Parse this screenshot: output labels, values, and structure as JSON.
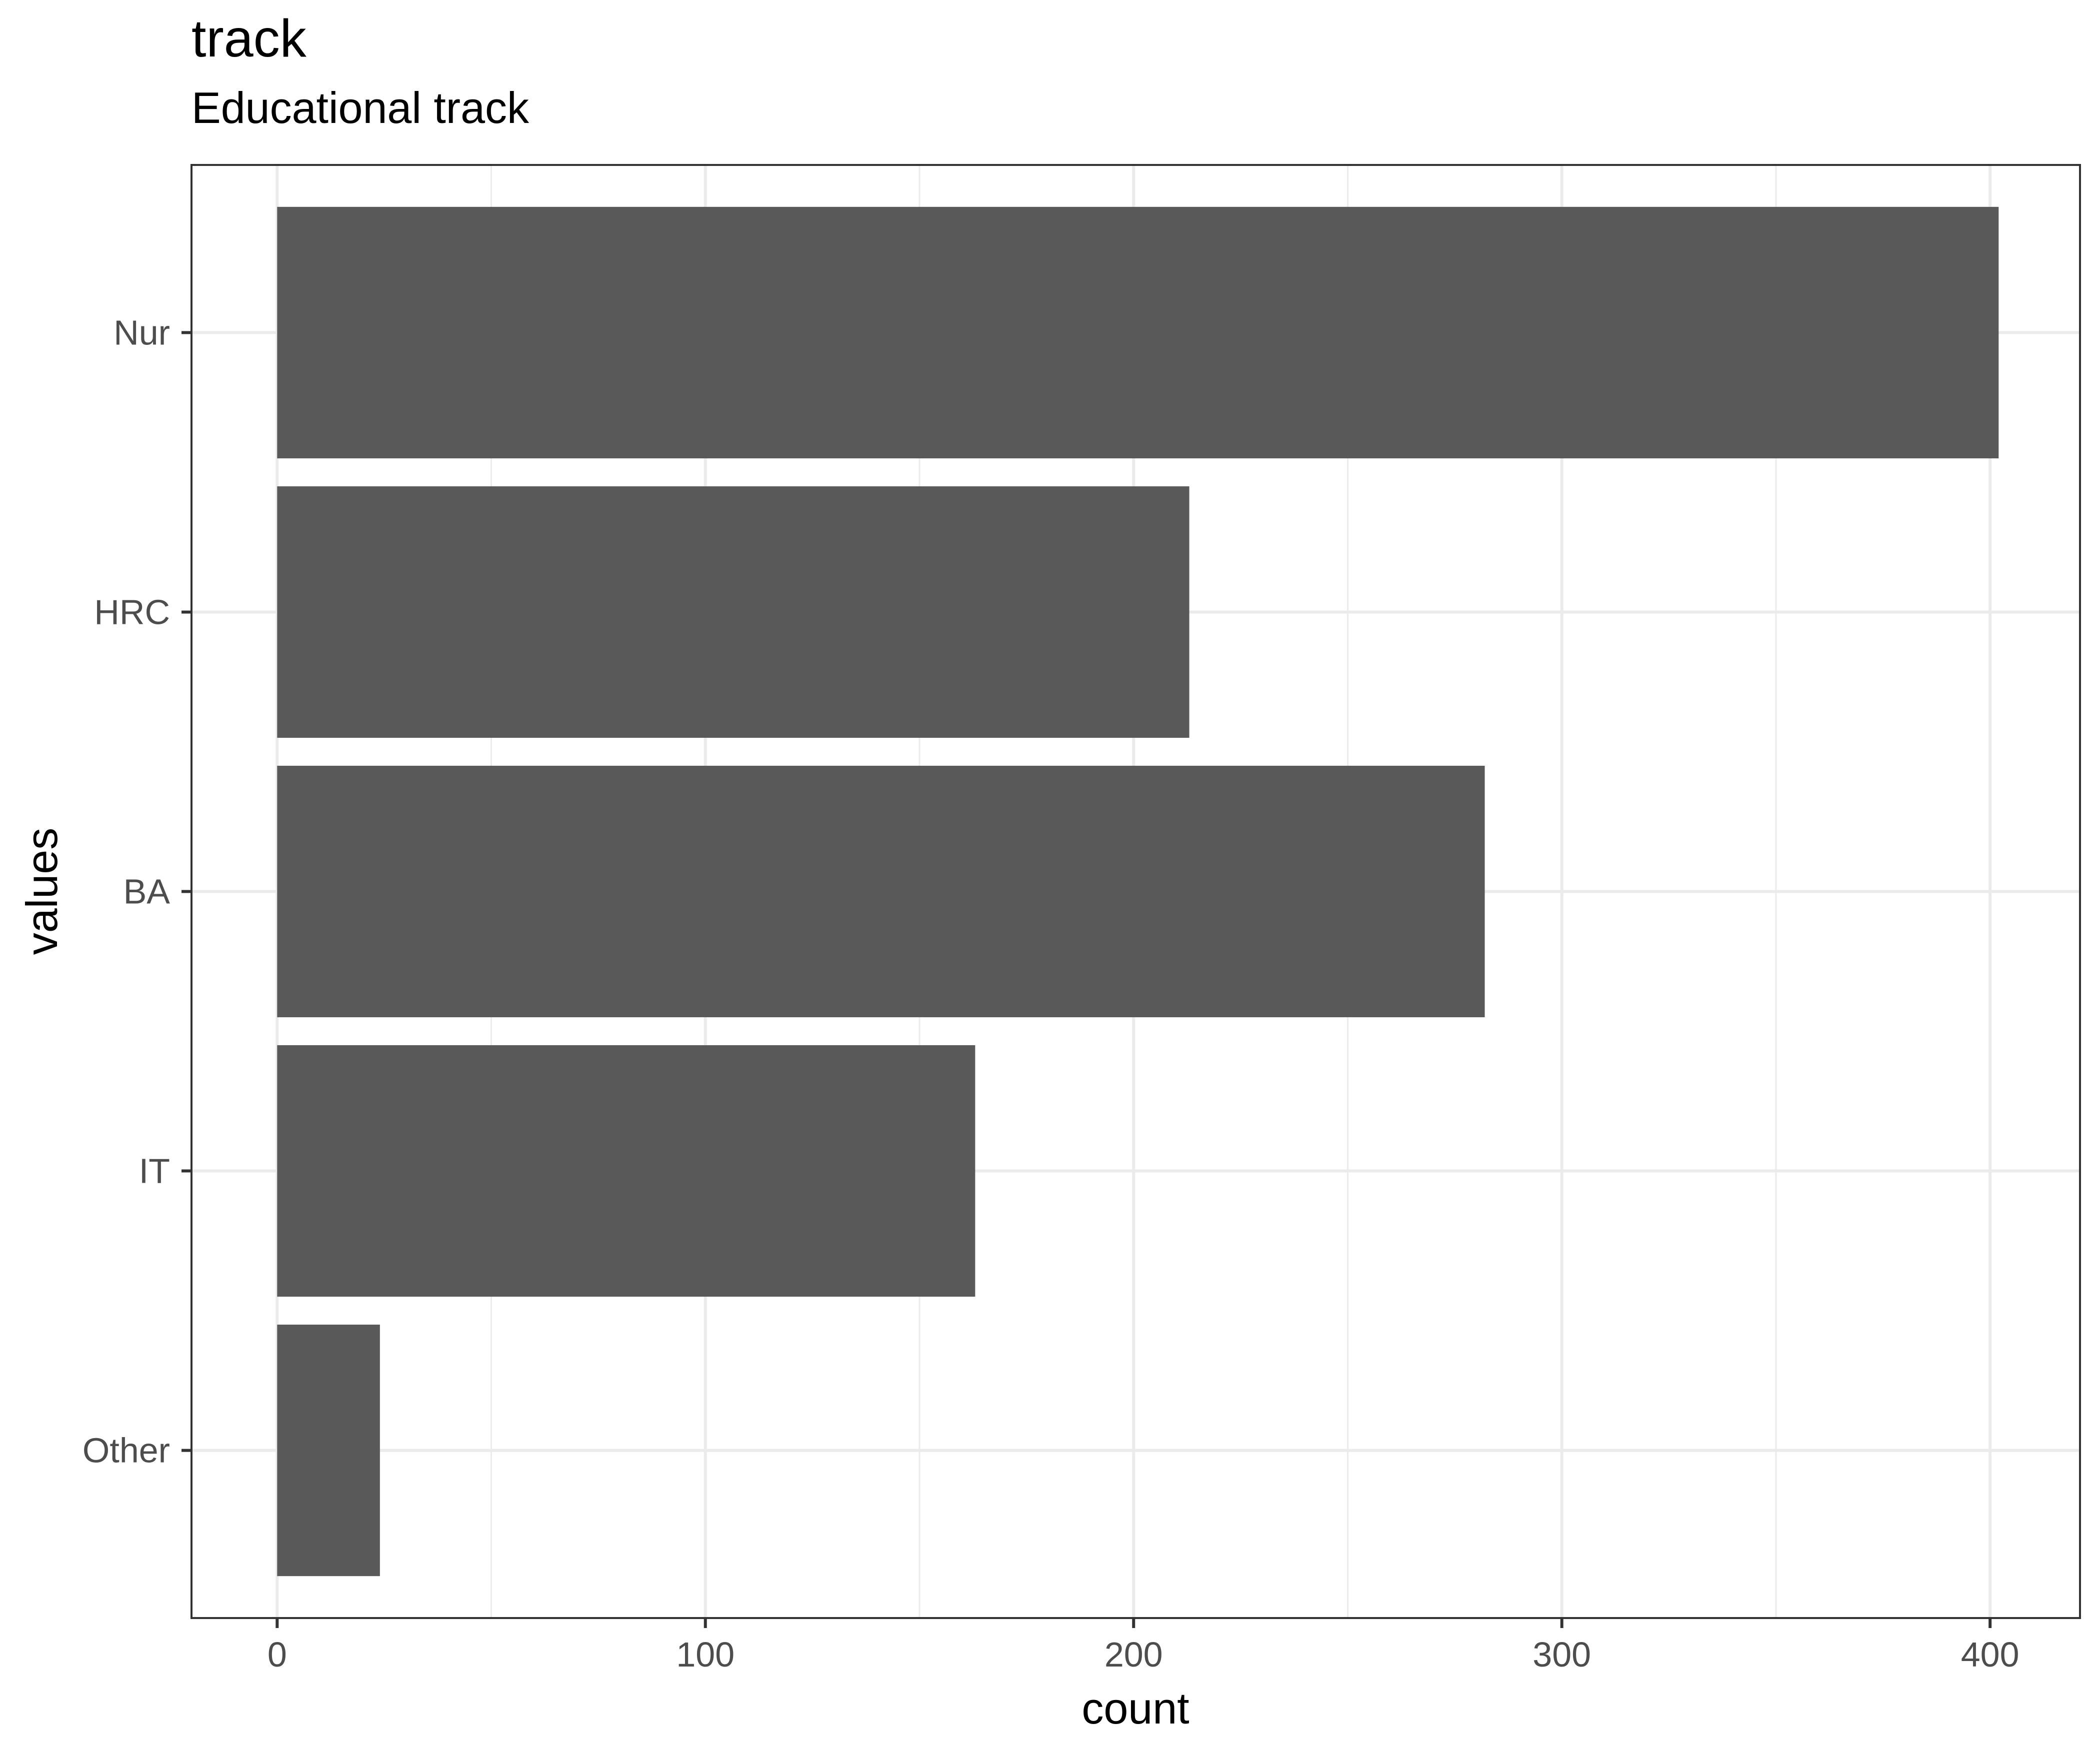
{
  "chart_data": {
    "type": "bar",
    "orientation": "horizontal",
    "title": "track",
    "subtitle": "Educational track",
    "xlabel": "count",
    "ylabel": "values",
    "categories": [
      "Nur",
      "HRC",
      "BA",
      "IT",
      "Other"
    ],
    "values": [
      402,
      213,
      282,
      163,
      24
    ],
    "xlim": [
      -20,
      421
    ],
    "xticks": [
      0,
      100,
      200,
      300,
      400
    ],
    "grid": true,
    "legend": "none",
    "bar_color": "#595959",
    "panel_border_color": "#333333",
    "grid_color": "#ebebeb"
  }
}
